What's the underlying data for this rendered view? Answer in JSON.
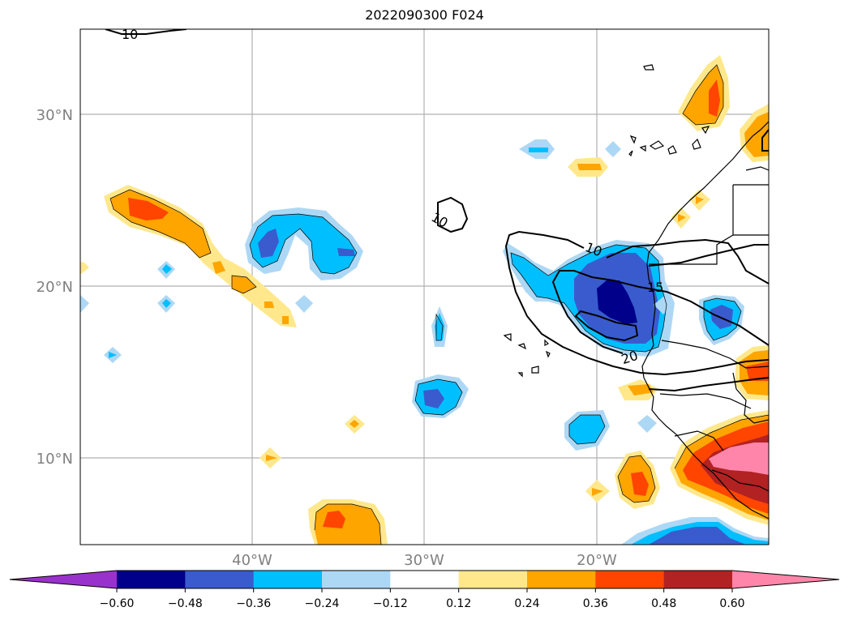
{
  "title": "2022090300 F024",
  "map": {
    "lat_labels": [
      "30°N",
      "20°N",
      "10°N"
    ],
    "lon_labels": [
      "40°W",
      "30°W",
      "20°W"
    ],
    "contour_labels": [
      "10",
      "10",
      "10",
      "15",
      "20"
    ]
  },
  "colorbar": {
    "ticks": [
      "−0.60",
      "−0.48",
      "−0.36",
      "−0.24",
      "−0.12",
      "0.12",
      "0.24",
      "0.36",
      "0.48",
      "0.60"
    ],
    "colors": [
      "#9932cc",
      "#00008b",
      "#3a5bcd",
      "#00bfff",
      "#add8f5",
      "#ffffff",
      "#ffe88c",
      "#ffa500",
      "#ff4500",
      "#b22222",
      "#ff86aa"
    ]
  },
  "palette": {
    "neg_060": "#00008b",
    "neg_048": "#3a5bcd",
    "neg_036": "#00bfff",
    "neg_024": "#add8f5",
    "pos_024": "#ffe88c",
    "pos_036": "#ffa500",
    "pos_048": "#ff4500",
    "pos_060": "#b22222",
    "pos_max": "#ff86aa"
  }
}
